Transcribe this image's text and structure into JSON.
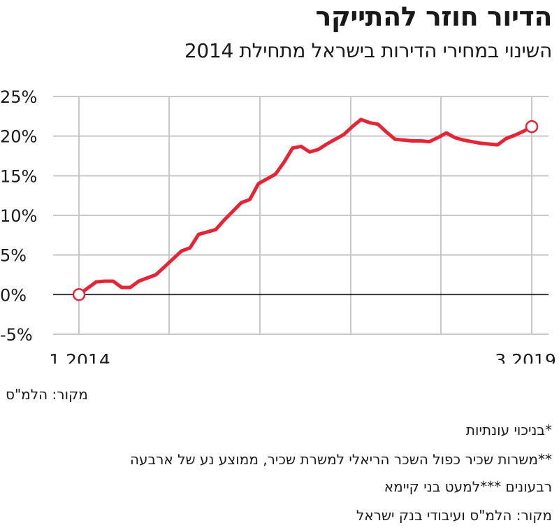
{
  "header": {
    "title": "הדיור חוזר להתייקר",
    "subtitle": "השינוי במחירי הדירות בישראל מתחילת 2014"
  },
  "chart_data": {
    "type": "line",
    "title": "הדיור חוזר להתייקר",
    "subtitle": "השינוי במחירי הדירות בישראל מתחילת 2014",
    "xlabel": "",
    "ylabel": "",
    "ylim": [
      -5,
      25
    ],
    "yticks": [
      25,
      20,
      15,
      10,
      5,
      0,
      -5
    ],
    "ytick_labels": [
      "25%",
      "20%",
      "15%",
      "10%",
      "5%",
      "0%",
      "-5%"
    ],
    "x_start_label": "1.2014",
    "x_end_label": "3.2019",
    "grid": true,
    "color": "#e52535",
    "series": [
      {
        "values": [
          0.0,
          0.8,
          1.6,
          1.7,
          1.7,
          0.9,
          0.9,
          1.7,
          2.1,
          2.5,
          3.5,
          4.5,
          5.5,
          5.9,
          7.6,
          7.9,
          8.2,
          9.4,
          10.5,
          11.6,
          12.0,
          14.0,
          14.6,
          15.2,
          16.7,
          18.5,
          18.7,
          18.0,
          18.3,
          19.0,
          19.6,
          20.2,
          21.2,
          22.1,
          21.7,
          21.5,
          20.5,
          19.6,
          19.5,
          19.4,
          19.4,
          19.3,
          19.8,
          20.4,
          19.8,
          19.5,
          19.3,
          19.1,
          19.0,
          18.9,
          19.7,
          20.1,
          20.6,
          21.2
        ]
      }
    ],
    "endpoint_markers": true
  },
  "footer": {
    "source1": "מקור: הלמ\"ס",
    "notes": [
      "*בניכוי עונתיות",
      "**משרות שכיר כפול השכר הריאלי למשרת שכיר, ממוצע נע של ארבעה",
      "רבעונים ***למעט בני קיימא",
      "מקור: הלמ\"ס ועיבודי בנק ישראל"
    ]
  }
}
